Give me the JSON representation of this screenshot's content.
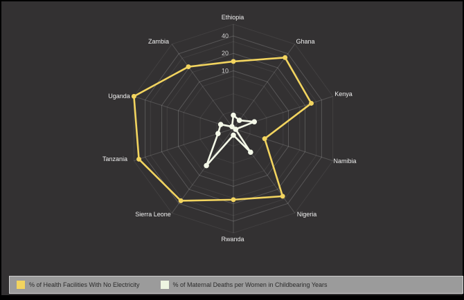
{
  "chart_data": {
    "type": "radar",
    "title": "",
    "categories": [
      "Ethiopia",
      "Ghana",
      "Kenya",
      "Namibia",
      "Nigeria",
      "Rwanda",
      "Sierra Leone",
      "Tanzania",
      "Uganda",
      "Zambia"
    ],
    "series": [
      {
        "name": "% of Health Facilities With No Electricity",
        "color": "#f2d45f",
        "values": [
          14.5,
          33,
          26,
          3.7,
          28,
          17,
          35,
          52,
          64,
          21
        ]
      },
      {
        "name": "% of Maternal Deaths per Women in Childbearing Years",
        "color": "#f4f8e8",
        "values": [
          1.7,
          1.5,
          2.4,
          1.1,
          3.2,
          1.3,
          6.2,
          1.9,
          1.7,
          1.1
        ]
      }
    ],
    "axis": {
      "scale": "log",
      "min": 1,
      "max": 64,
      "tick_labels": [
        "10",
        "20",
        "40"
      ],
      "tick_values": [
        10,
        20,
        40
      ],
      "minor_ring_values": [
        2,
        4,
        8,
        16,
        32,
        64
      ]
    },
    "legend_position": "bottom",
    "grid": true
  },
  "colors": {
    "background": "#333132",
    "frame": "#000000",
    "grid_major": "rgba(255,255,255,0.18)",
    "grid_minor": "rgba(255,255,255,0.07)",
    "spoke": "rgba(255,255,255,0.16)",
    "category_label": "#efefef",
    "tick_label": "#d2d2d2",
    "legend_bg": "#9b9b9b",
    "legend_text": "#2b2b2b",
    "series_yellow": "#f2d45f",
    "series_pale": "#f4f8e8",
    "legend_swatch_pale": "#edf5e1"
  }
}
